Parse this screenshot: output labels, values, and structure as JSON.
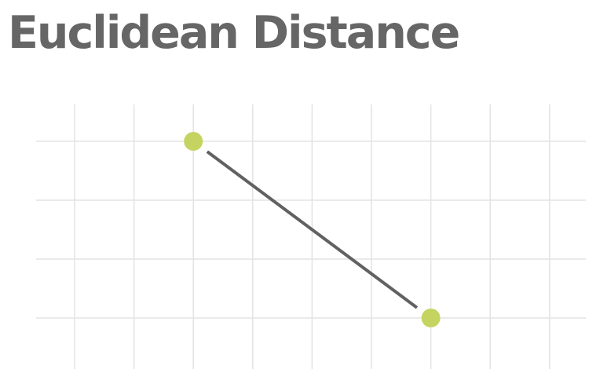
{
  "title": "Euclidean Distance",
  "colors": {
    "title": "#666666",
    "grid": "#e3e3e3",
    "segment": "#616161",
    "point": "#c5d461"
  },
  "grid": {
    "columns": 9,
    "rows": 4,
    "shown": true
  },
  "points": [
    {
      "name": "point-a",
      "col": 2,
      "row": 0
    },
    {
      "name": "point-b",
      "col": 6,
      "row": 3
    }
  ]
}
